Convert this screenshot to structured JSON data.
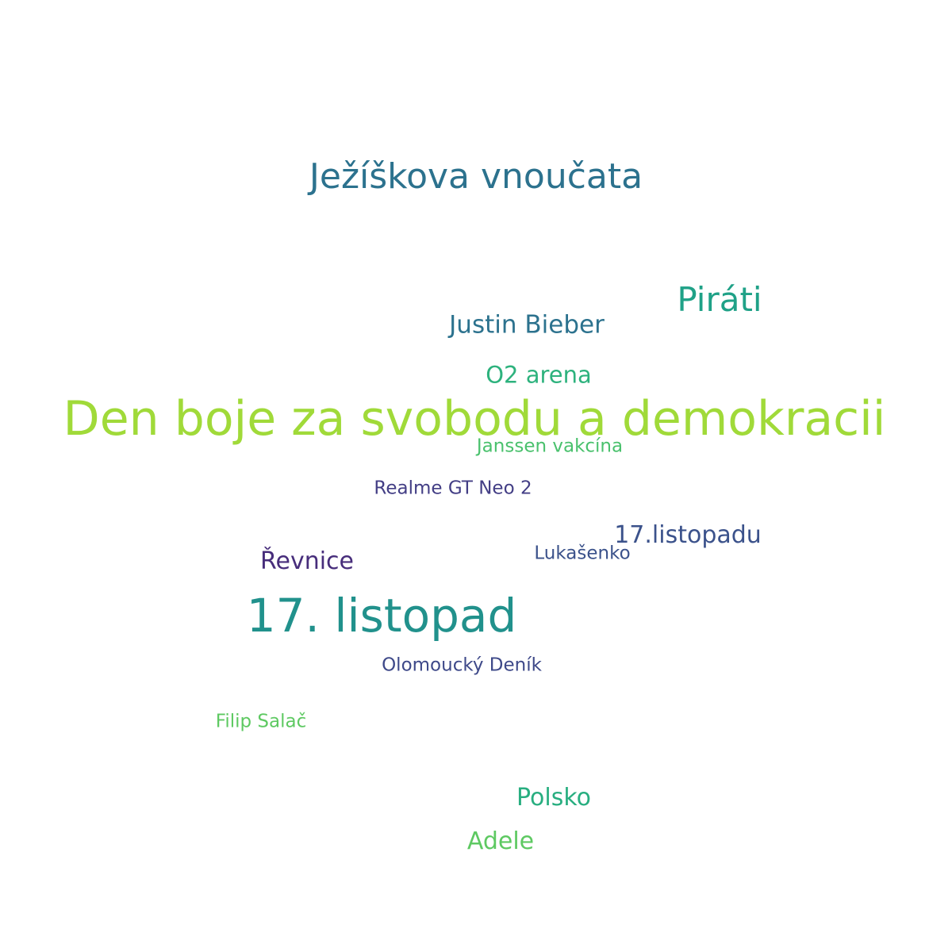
{
  "words": [
    {
      "text": "Den boje za svobodu a demokracii",
      "color": "#a0da39"
    },
    {
      "text": "17. listopad",
      "color": "#21918c"
    },
    {
      "text": "Ježíškova vnoučata",
      "color": "#2c728e"
    },
    {
      "text": "Piráti",
      "color": "#1fa187"
    },
    {
      "text": "Justin Bieber",
      "color": "#2c728e"
    },
    {
      "text": "17.listopadu",
      "color": "#3b528b"
    },
    {
      "text": "O2 arena",
      "color": "#2db27d"
    },
    {
      "text": "Řevnice",
      "color": "#472d7b"
    },
    {
      "text": "Polsko",
      "color": "#28ae80"
    },
    {
      "text": "Adele",
      "color": "#5ec962"
    },
    {
      "text": "Janssen vakcína",
      "color": "#4ac16d"
    },
    {
      "text": "Realme GT Neo 2",
      "color": "#433e85"
    },
    {
      "text": "Lukašenko",
      "color": "#3b528b"
    },
    {
      "text": "Olomoucký Deník",
      "color": "#3e4989"
    },
    {
      "text": "Filip Salač",
      "color": "#5ec962"
    }
  ]
}
